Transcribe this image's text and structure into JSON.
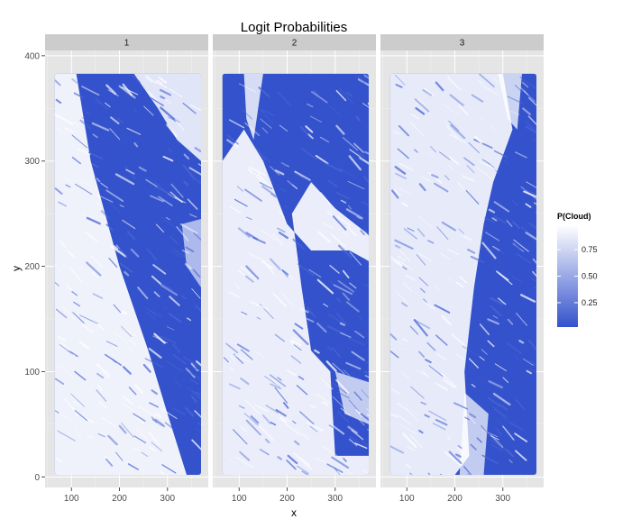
{
  "chart_data": {
    "type": "heatmap",
    "title": "Logit Probabilities",
    "xlabel": "x",
    "ylabel": "y",
    "xlim": [
      45,
      385
    ],
    "ylim": [
      -10,
      405
    ],
    "x_ticks": [
      100,
      200,
      300
    ],
    "y_ticks": [
      0,
      100,
      200,
      300,
      400
    ],
    "grid": true,
    "facets": [
      {
        "label": "1",
        "x_range": [
          65,
          370
        ],
        "y_range": [
          2,
          383
        ]
      },
      {
        "label": "2",
        "x_range": [
          65,
          370
        ],
        "y_range": [
          2,
          383
        ]
      },
      {
        "label": "3",
        "x_range": [
          65,
          370
        ],
        "y_range": [
          2,
          383
        ]
      }
    ],
    "legend": {
      "title": "P(Cloud)",
      "position": "right",
      "breaks": [
        0.25,
        0.5,
        0.75
      ],
      "labels": [
        "0.25",
        "0.50",
        "0.75"
      ],
      "range": [
        0.02,
        0.98
      ],
      "low_color": "#3352cc",
      "high_color": "#ffffff"
    },
    "colors": {
      "panel_bg": "#e5e5e5",
      "grid": "#ffffff",
      "strip_bg": "#cccccc"
    }
  }
}
